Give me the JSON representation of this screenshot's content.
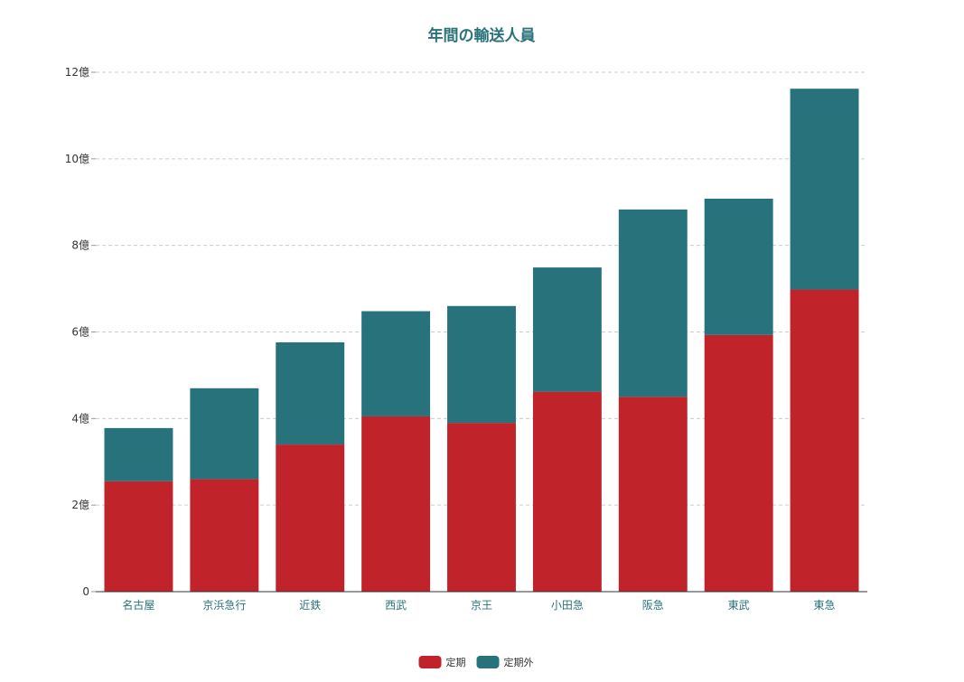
{
  "chart_data": {
    "type": "bar",
    "stacked": true,
    "title": "年間の輸送人員",
    "xlabel": "",
    "ylabel": "",
    "categories": [
      "名古屋",
      "京浜急行",
      "近鉄",
      "西武",
      "京王",
      "小田急",
      "阪急",
      "東武",
      "東急"
    ],
    "series": [
      {
        "name": "定期",
        "color": "#c1232b",
        "values": [
          2.55,
          2.6,
          3.4,
          4.05,
          3.9,
          4.62,
          4.5,
          5.93,
          6.98
        ]
      },
      {
        "name": "定期外",
        "color": "#27727b",
        "values": [
          1.23,
          2.1,
          2.36,
          2.43,
          2.7,
          2.87,
          4.33,
          3.15,
          4.64
        ]
      }
    ],
    "ylim": [
      0,
      12
    ],
    "yticks": [
      0,
      2,
      4,
      6,
      8,
      10,
      12
    ],
    "ytick_labels": [
      "0",
      "2億",
      "4億",
      "6億",
      "8億",
      "10億",
      "12億"
    ],
    "grid": true,
    "legend_position": "bottom-center"
  }
}
